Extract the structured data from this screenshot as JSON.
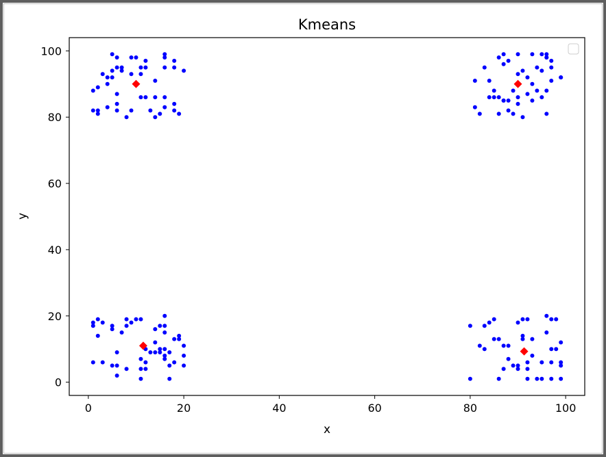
{
  "chart_data": {
    "type": "scatter",
    "title": "Kmeans",
    "xlabel": "x",
    "ylabel": "y",
    "xlim": [
      -4,
      104
    ],
    "ylim": [
      -4,
      104
    ],
    "xticks": [
      0,
      20,
      40,
      60,
      80,
      100
    ],
    "yticks": [
      0,
      20,
      40,
      60,
      80,
      100
    ],
    "grid": false,
    "legend": {
      "placement": "top-right",
      "entries": []
    },
    "series": [
      {
        "role": "points",
        "color": "#0000ff",
        "marker": "circle",
        "points": [
          [
            5,
            99
          ],
          [
            6,
            98
          ],
          [
            9,
            98
          ],
          [
            10,
            98
          ],
          [
            12,
            97
          ],
          [
            16,
            99
          ],
          [
            16,
            98
          ],
          [
            18,
            97
          ],
          [
            20,
            94
          ],
          [
            1,
            88
          ],
          [
            2,
            89
          ],
          [
            3,
            93
          ],
          [
            4,
            92
          ],
          [
            4,
            90
          ],
          [
            5,
            92
          ],
          [
            5,
            94
          ],
          [
            6,
            95
          ],
          [
            7,
            95
          ],
          [
            7,
            94
          ],
          [
            9,
            93
          ],
          [
            11,
            95
          ],
          [
            11,
            93
          ],
          [
            12,
            95
          ],
          [
            14,
            91
          ],
          [
            16,
            95
          ],
          [
            18,
            95
          ],
          [
            1,
            82
          ],
          [
            2,
            82
          ],
          [
            2,
            81
          ],
          [
            4,
            83
          ],
          [
            6,
            87
          ],
          [
            6,
            84
          ],
          [
            6,
            82
          ],
          [
            8,
            80
          ],
          [
            9,
            82
          ],
          [
            11,
            86
          ],
          [
            12,
            86
          ],
          [
            13,
            82
          ],
          [
            14,
            80
          ],
          [
            14,
            86
          ],
          [
            15,
            81
          ],
          [
            16,
            86
          ],
          [
            16,
            83
          ],
          [
            18,
            84
          ],
          [
            18,
            82
          ],
          [
            19,
            81
          ],
          [
            86,
            98
          ],
          [
            87,
            99
          ],
          [
            88,
            97
          ],
          [
            90,
            99
          ],
          [
            93,
            99
          ],
          [
            95,
            99
          ],
          [
            96,
            99
          ],
          [
            97,
            97
          ],
          [
            96,
            98
          ],
          [
            99,
            92
          ],
          [
            81,
            91
          ],
          [
            83,
            95
          ],
          [
            84,
            91
          ],
          [
            85,
            88
          ],
          [
            86,
            86
          ],
          [
            87,
            85
          ],
          [
            87,
            96
          ],
          [
            88,
            85
          ],
          [
            89,
            88
          ],
          [
            90,
            93
          ],
          [
            91,
            94
          ],
          [
            92,
            92
          ],
          [
            93,
            90
          ],
          [
            94,
            95
          ],
          [
            95,
            94
          ],
          [
            96,
            98
          ],
          [
            97,
            95
          ],
          [
            97,
            91
          ],
          [
            99,
            92
          ],
          [
            81,
            83
          ],
          [
            82,
            81
          ],
          [
            84,
            86
          ],
          [
            85,
            86
          ],
          [
            86,
            81
          ],
          [
            87,
            85
          ],
          [
            88,
            82
          ],
          [
            89,
            81
          ],
          [
            90,
            86
          ],
          [
            90,
            84
          ],
          [
            91,
            80
          ],
          [
            92,
            87
          ],
          [
            93,
            85
          ],
          [
            94,
            88
          ],
          [
            95,
            86
          ],
          [
            96,
            81
          ],
          [
            96,
            88
          ],
          [
            1,
            18
          ],
          [
            1,
            17
          ],
          [
            2,
            19
          ],
          [
            2,
            14
          ],
          [
            3,
            18
          ],
          [
            5,
            17
          ],
          [
            5,
            16
          ],
          [
            7,
            15
          ],
          [
            8,
            19
          ],
          [
            8,
            17
          ],
          [
            9,
            18
          ],
          [
            10,
            19
          ],
          [
            11,
            19
          ],
          [
            12,
            10
          ],
          [
            14,
            16
          ],
          [
            15,
            17
          ],
          [
            16,
            20
          ],
          [
            16,
            17
          ],
          [
            16,
            15
          ],
          [
            18,
            13
          ],
          [
            19,
            14
          ],
          [
            19,
            13
          ],
          [
            20,
            11
          ],
          [
            1,
            6
          ],
          [
            3,
            6
          ],
          [
            5,
            5
          ],
          [
            6,
            5
          ],
          [
            6,
            2
          ],
          [
            6,
            9
          ],
          [
            8,
            4
          ],
          [
            11,
            7
          ],
          [
            11,
            4
          ],
          [
            11,
            1
          ],
          [
            12,
            6
          ],
          [
            12,
            4
          ],
          [
            13,
            9
          ],
          [
            14,
            12
          ],
          [
            14,
            9
          ],
          [
            15,
            10
          ],
          [
            15,
            9
          ],
          [
            16,
            10
          ],
          [
            16,
            8
          ],
          [
            16,
            7
          ],
          [
            17,
            5
          ],
          [
            17,
            9
          ],
          [
            17,
            1
          ],
          [
            18,
            6
          ],
          [
            20,
            8
          ],
          [
            20,
            5
          ],
          [
            80,
            17
          ],
          [
            80,
            1
          ],
          [
            82,
            11
          ],
          [
            83,
            17
          ],
          [
            83,
            10
          ],
          [
            84,
            18
          ],
          [
            85,
            19
          ],
          [
            85,
            13
          ],
          [
            86,
            13
          ],
          [
            86,
            1
          ],
          [
            87,
            11
          ],
          [
            87,
            4
          ],
          [
            88,
            7
          ],
          [
            88,
            11
          ],
          [
            89,
            5
          ],
          [
            90,
            5
          ],
          [
            90,
            4
          ],
          [
            90,
            18
          ],
          [
            91,
            19
          ],
          [
            91,
            14
          ],
          [
            91,
            13
          ],
          [
            92,
            19
          ],
          [
            92,
            6
          ],
          [
            92,
            4
          ],
          [
            92,
            1
          ],
          [
            93,
            13
          ],
          [
            93,
            8
          ],
          [
            94,
            1
          ],
          [
            95,
            6
          ],
          [
            95,
            1
          ],
          [
            96,
            20
          ],
          [
            96,
            15
          ],
          [
            97,
            19
          ],
          [
            97,
            10
          ],
          [
            97,
            6
          ],
          [
            97,
            1
          ],
          [
            98,
            19
          ],
          [
            98,
            10
          ],
          [
            99,
            12
          ],
          [
            99,
            6
          ],
          [
            99,
            5
          ],
          [
            99,
            1
          ]
        ]
      },
      {
        "role": "centroids",
        "color": "#ff0000",
        "marker": "diamond",
        "points": [
          [
            10,
            90
          ],
          [
            90,
            90
          ],
          [
            11.5,
            11
          ],
          [
            91.3,
            9.3
          ]
        ]
      }
    ]
  }
}
